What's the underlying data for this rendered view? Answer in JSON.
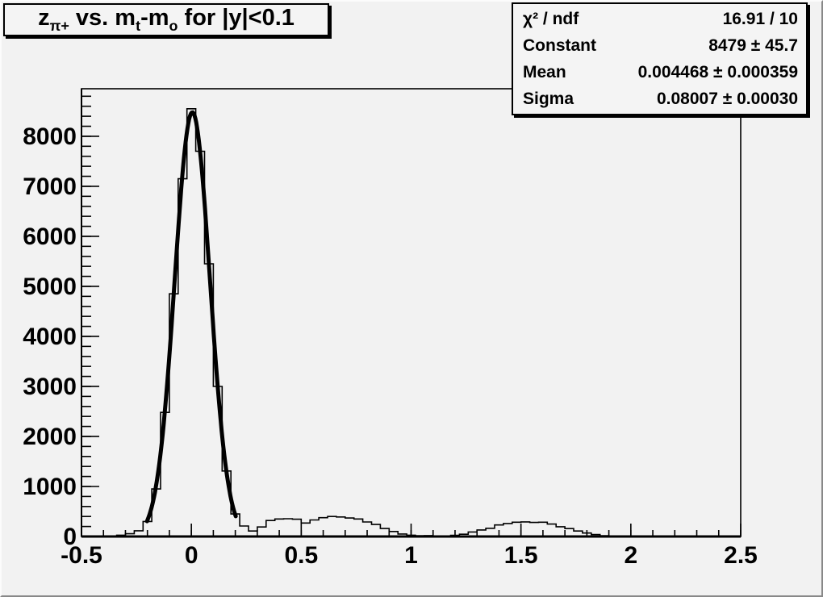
{
  "window": {
    "background_color": "#f2f2f2",
    "bevel_light": "#fcfcfc",
    "bevel_dark": "#888888"
  },
  "chart_data": {
    "type": "bar",
    "style": "root-histogram-with-gaussian-fit",
    "title": "z_{π+} vs. m_t-m_o for |y|<0.1",
    "title_segments": [
      {
        "text": "z",
        "sub": false
      },
      {
        "text": "π+",
        "sub": true
      },
      {
        "text": " vs. m",
        "sub": false
      },
      {
        "text": "t",
        "sub": true
      },
      {
        "text": "-m",
        "sub": false
      },
      {
        "text": "o",
        "sub": true
      },
      {
        "text": " for |y|<0.1",
        "sub": false
      }
    ],
    "xlabel": "",
    "ylabel": "",
    "x_range": [
      -0.5,
      2.5
    ],
    "y_range": [
      0,
      8950
    ],
    "x_tick_values": [
      -0.5,
      0,
      0.5,
      1,
      1.5,
      2,
      2.5
    ],
    "x_tick_labels": [
      "-0.5",
      "0",
      "0.5",
      "1",
      "1.5",
      "2",
      "2.5"
    ],
    "x_minor_step": 0.1,
    "y_tick_values": [
      0,
      1000,
      2000,
      3000,
      4000,
      5000,
      6000,
      7000,
      8000
    ],
    "y_tick_labels": [
      "0",
      "1000",
      "2000",
      "3000",
      "4000",
      "5000",
      "6000",
      "7000",
      "8000"
    ],
    "y_minor_step": 200,
    "grid": false,
    "bin_start": -0.5,
    "bin_width": 0.04,
    "bin_counts": [
      0,
      0,
      0,
      0,
      25,
      55,
      115,
      300,
      950,
      2480,
      4850,
      7150,
      8550,
      7700,
      5450,
      3000,
      1310,
      450,
      210,
      110,
      190,
      320,
      350,
      355,
      345,
      270,
      330,
      375,
      400,
      390,
      370,
      350,
      290,
      240,
      160,
      100,
      50,
      25,
      15,
      18,
      10,
      12,
      22,
      45,
      90,
      130,
      165,
      230,
      260,
      285,
      292,
      280,
      285,
      248,
      195,
      158,
      110,
      70,
      38,
      15,
      0,
      0,
      0,
      0,
      0,
      0,
      0,
      0,
      0,
      0,
      0,
      0,
      0,
      0,
      0
    ],
    "fit": {
      "shape": "gaussian",
      "constant": 8479,
      "mean": 0.004468,
      "sigma": 0.08007,
      "draw_range": [
        -0.202,
        0.202
      ],
      "color": "#000000"
    },
    "stats_box": {
      "rows": [
        {
          "label": "χ² / ndf",
          "value": "16.91 / 10"
        },
        {
          "label": "Constant",
          "value": "8479 ± 45.7"
        },
        {
          "label": "Mean",
          "value": "0.004468 ± 0.000359"
        },
        {
          "label": "Sigma",
          "value": "0.08007 ± 0.00030"
        }
      ]
    },
    "colors": {
      "line": "#000000",
      "plot_background": "#f2f2f2",
      "box_background": "#f4f4f4"
    }
  }
}
